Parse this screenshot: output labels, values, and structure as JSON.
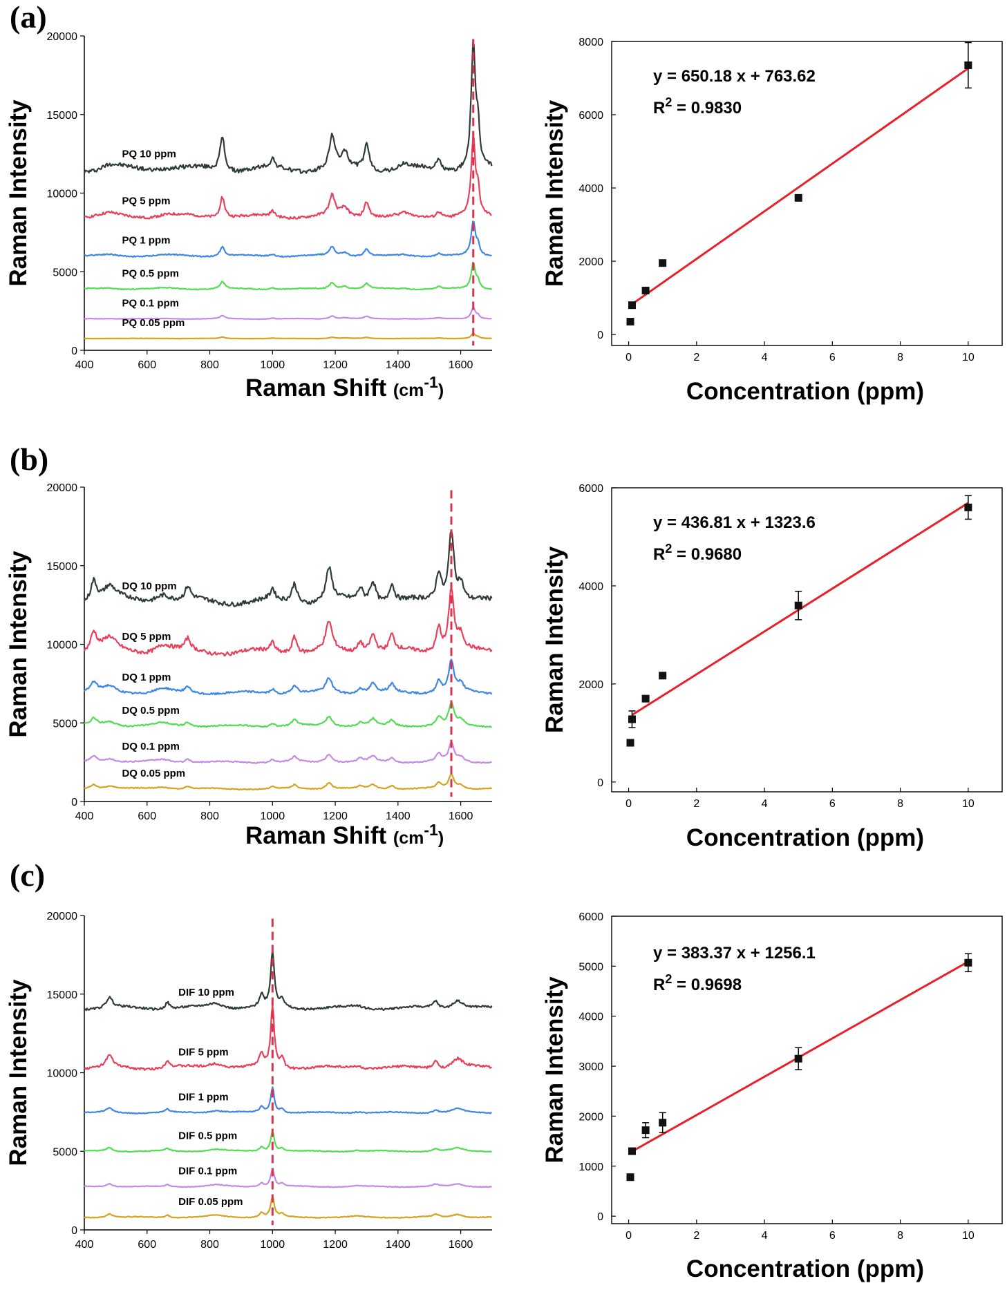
{
  "panels": [
    {
      "label": "(a)",
      "spectrum": {
        "type": "line",
        "xlabel": "Raman Shift (cm-1)",
        "xlabel_main": "Raman Shift ",
        "xlabel_unit": "(cm",
        "xlabel_sup": "-1",
        "xlabel_close": ")",
        "ylabel": "Raman Intensity",
        "xlim": [
          400,
          1700
        ],
        "ylim": [
          0,
          20000
        ],
        "xticks": [
          "400",
          "600",
          "800",
          "1000",
          "1200",
          "1400",
          "1600"
        ],
        "yticks": [
          "0",
          "5000",
          "10000",
          "15000",
          "20000"
        ],
        "marker_x": 1640,
        "peaks": [
          {
            "x": 480,
            "h": 0.12,
            "w": 30
          },
          {
            "x": 660,
            "h": 0.1,
            "w": 40
          },
          {
            "x": 840,
            "h": 1.0,
            "w": 9
          },
          {
            "x": 1000,
            "h": 0.25,
            "w": 8
          },
          {
            "x": 1190,
            "h": 0.95,
            "w": 10
          },
          {
            "x": 1230,
            "h": 0.4,
            "w": 14
          },
          {
            "x": 1300,
            "h": 0.75,
            "w": 10
          },
          {
            "x": 1420,
            "h": 0.12,
            "w": 14
          },
          {
            "x": 1530,
            "h": 0.3,
            "w": 10
          },
          {
            "x": 1640,
            "h": 3.6,
            "w": 8
          },
          {
            "x": 1655,
            "h": 1.0,
            "w": 6
          }
        ],
        "series": [
          {
            "name": "PQ 10 ppm",
            "color": "#2e3b36",
            "baseline": 11500,
            "scale": 2200
          },
          {
            "name": "PQ 5 ppm",
            "color": "#e8405a",
            "baseline": 8500,
            "scale": 1350
          },
          {
            "name": "PQ 1 ppm",
            "color": "#3f86e6",
            "baseline": 6000,
            "scale": 600
          },
          {
            "name": "PQ 0.5 ppm",
            "color": "#52dd52",
            "baseline": 3900,
            "scale": 450
          },
          {
            "name": "PQ 0.1 ppm",
            "color": "#c58ae6",
            "baseline": 2000,
            "scale": 200
          },
          {
            "name": "PQ 0.05 ppm",
            "color": "#d6a320",
            "baseline": 750,
            "scale": 90
          }
        ]
      },
      "calibration": {
        "type": "scatter",
        "xlabel": "Concentration (ppm)",
        "ylabel": "Raman Intensity",
        "xlim": [
          -0.5,
          11
        ],
        "ylim": [
          -300,
          8000
        ],
        "xticks": [
          "0",
          "2",
          "4",
          "6",
          "8",
          "10"
        ],
        "yticks": [
          "0",
          "2000",
          "4000",
          "6000",
          "8000"
        ],
        "equation": "y = 650.18 x + 763.62",
        "r2_prefix": "R",
        "r2_sup": "2",
        "r2_value": " = 0.9830",
        "fit": {
          "slope": 650.18,
          "intercept": 763.62
        },
        "points": [
          {
            "x": 0.05,
            "y": 350,
            "err": 0
          },
          {
            "x": 0.1,
            "y": 800,
            "err": 0
          },
          {
            "x": 0.5,
            "y": 1200,
            "err": 80
          },
          {
            "x": 1,
            "y": 1950,
            "err": 0
          },
          {
            "x": 5,
            "y": 3730,
            "err": 0
          },
          {
            "x": 10,
            "y": 7350,
            "err": 620
          }
        ]
      }
    },
    {
      "label": "(b)",
      "spectrum": {
        "type": "line",
        "xlabel": "Raman Shift (cm-1)",
        "xlabel_main": "Raman Shift ",
        "xlabel_unit": "(cm",
        "xlabel_sup": "-1",
        "xlabel_close": ")",
        "ylabel": "Raman Intensity",
        "xlim": [
          400,
          1700
        ],
        "ylim": [
          0,
          20000
        ],
        "xticks": [
          "400",
          "600",
          "800",
          "1000",
          "1200",
          "1400",
          "1600"
        ],
        "yticks": [
          "0",
          "5000",
          "10000",
          "15000",
          "20000"
        ],
        "marker_x": 1570,
        "peaks": [
          {
            "x": 430,
            "h": 0.6,
            "w": 12
          },
          {
            "x": 480,
            "h": 0.4,
            "w": 25
          },
          {
            "x": 650,
            "h": 0.25,
            "w": 30
          },
          {
            "x": 730,
            "h": 0.35,
            "w": 10
          },
          {
            "x": 1000,
            "h": 0.3,
            "w": 8
          },
          {
            "x": 1070,
            "h": 0.55,
            "w": 10
          },
          {
            "x": 1180,
            "h": 0.9,
            "w": 12
          },
          {
            "x": 1280,
            "h": 0.35,
            "w": 10
          },
          {
            "x": 1320,
            "h": 0.6,
            "w": 12
          },
          {
            "x": 1380,
            "h": 0.5,
            "w": 10
          },
          {
            "x": 1530,
            "h": 0.8,
            "w": 10
          },
          {
            "x": 1570,
            "h": 2.0,
            "w": 10
          },
          {
            "x": 1600,
            "h": 0.5,
            "w": 12
          }
        ],
        "series": [
          {
            "name": "DQ 10 ppm",
            "color": "#2e3b36",
            "baseline": 12700,
            "scale": 2300
          },
          {
            "name": "DQ 5 ppm",
            "color": "#e8405a",
            "baseline": 9500,
            "scale": 2000
          },
          {
            "name": "DQ 1 ppm",
            "color": "#3f86e6",
            "baseline": 6900,
            "scale": 1000
          },
          {
            "name": "DQ 0.5 ppm",
            "color": "#52dd52",
            "baseline": 4800,
            "scale": 700
          },
          {
            "name": "DQ 0.1 ppm",
            "color": "#c58ae6",
            "baseline": 2500,
            "scale": 600
          },
          {
            "name": "DQ 0.05 ppm",
            "color": "#d6a320",
            "baseline": 800,
            "scale": 450
          }
        ]
      },
      "calibration": {
        "type": "scatter",
        "xlabel": "Concentration (ppm)",
        "ylabel": "Raman Intensity",
        "xlim": [
          -0.5,
          11
        ],
        "ylim": [
          -200,
          6000
        ],
        "xticks": [
          "0",
          "2",
          "4",
          "6",
          "8",
          "10"
        ],
        "yticks": [
          "0",
          "2000",
          "4000",
          "6000"
        ],
        "equation": "y = 436.81 x + 1323.6",
        "r2_prefix": "R",
        "r2_sup": "2",
        "r2_value": " = 0.9680",
        "fit": {
          "slope": 436.81,
          "intercept": 1323.6
        },
        "points": [
          {
            "x": 0.05,
            "y": 800,
            "err": 0
          },
          {
            "x": 0.1,
            "y": 1280,
            "err": 170
          },
          {
            "x": 0.5,
            "y": 1700,
            "err": 60
          },
          {
            "x": 1,
            "y": 2170,
            "err": 0
          },
          {
            "x": 5,
            "y": 3600,
            "err": 290
          },
          {
            "x": 10,
            "y": 5600,
            "err": 240
          }
        ]
      }
    },
    {
      "label": "(c)",
      "spectrum": {
        "type": "line",
        "xlabel": "",
        "ylabel": "Raman Intensity",
        "xlim": [
          400,
          1700
        ],
        "ylim": [
          0,
          20000
        ],
        "xticks": [
          "400",
          "600",
          "800",
          "1000",
          "1200",
          "1400",
          "1600"
        ],
        "yticks": [
          "0",
          "5000",
          "10000",
          "15000",
          "20000"
        ],
        "marker_x": 1000,
        "peaks": [
          {
            "x": 480,
            "h": 0.6,
            "w": 12
          },
          {
            "x": 665,
            "h": 0.4,
            "w": 8
          },
          {
            "x": 820,
            "h": 0.3,
            "w": 30
          },
          {
            "x": 965,
            "h": 0.7,
            "w": 8
          },
          {
            "x": 1000,
            "h": 3.2,
            "w": 7
          },
          {
            "x": 1030,
            "h": 0.5,
            "w": 8
          },
          {
            "x": 1270,
            "h": 0.15,
            "w": 20
          },
          {
            "x": 1520,
            "h": 0.4,
            "w": 10
          },
          {
            "x": 1590,
            "h": 0.5,
            "w": 20
          }
        ],
        "series": [
          {
            "name": "DIF 10 ppm",
            "color": "#2e3b36",
            "baseline": 14100,
            "scale": 1100
          },
          {
            "name": "DIF 5 ppm",
            "color": "#e8405a",
            "baseline": 10300,
            "scale": 1200
          },
          {
            "name": "DIF 1 ppm",
            "color": "#3f86e6",
            "baseline": 7450,
            "scale": 500
          },
          {
            "name": "DIF 0.5 ppm",
            "color": "#52dd52",
            "baseline": 5000,
            "scale": 400
          },
          {
            "name": "DIF 0.1 ppm",
            "color": "#c58ae6",
            "baseline": 2750,
            "scale": 350
          },
          {
            "name": "DIF 0.05 ppm",
            "color": "#d6a320",
            "baseline": 800,
            "scale": 400
          }
        ]
      },
      "calibration": {
        "type": "scatter",
        "xlabel": "Concentration (ppm)",
        "ylabel": "Raman Intensity",
        "xlim": [
          -0.5,
          11
        ],
        "ylim": [
          -150,
          6000
        ],
        "xticks": [
          "0",
          "2",
          "4",
          "6",
          "8",
          "10"
        ],
        "yticks": [
          "0",
          "1000",
          "2000",
          "3000",
          "4000",
          "5000",
          "6000"
        ],
        "equation": "y = 383.37 x + 1256.1",
        "r2_prefix": "R",
        "r2_sup": "2",
        "r2_value": " = 0.9698",
        "fit": {
          "slope": 383.37,
          "intercept": 1256.1
        },
        "points": [
          {
            "x": 0.05,
            "y": 780,
            "err": 0
          },
          {
            "x": 0.1,
            "y": 1300,
            "err": 0
          },
          {
            "x": 0.5,
            "y": 1720,
            "err": 150
          },
          {
            "x": 1,
            "y": 1870,
            "err": 200
          },
          {
            "x": 5,
            "y": 3150,
            "err": 220
          },
          {
            "x": 10,
            "y": 5070,
            "err": 180
          }
        ]
      }
    }
  ],
  "colors": {
    "fit_line": "#e8202a",
    "marker_line": "#d8334a",
    "marker_point": "#111111"
  }
}
